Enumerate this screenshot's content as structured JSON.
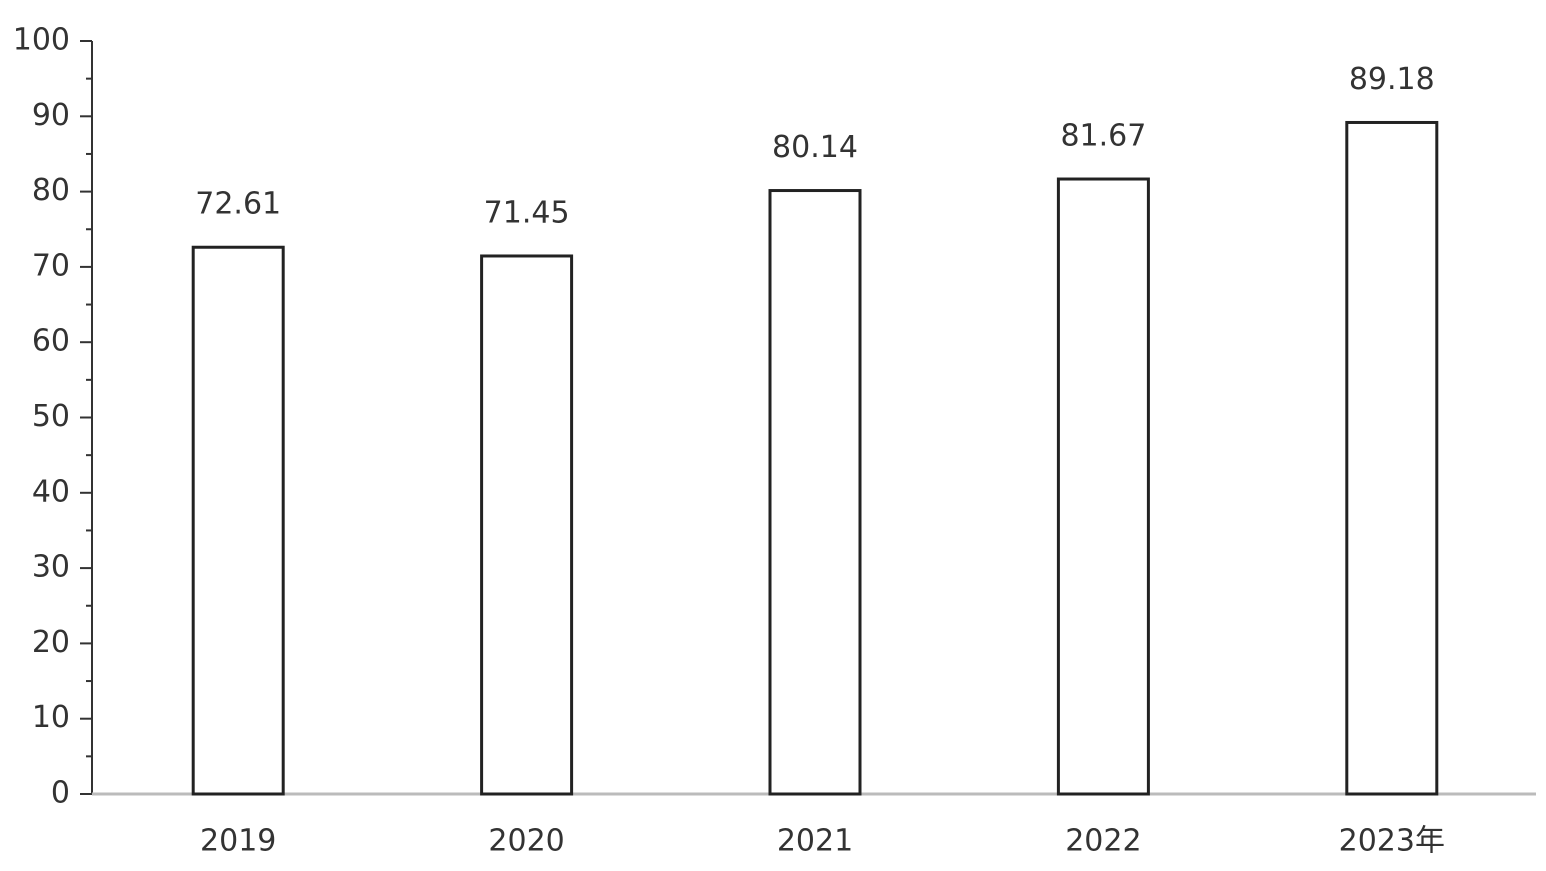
{
  "chart_data": {
    "type": "bar",
    "categories": [
      "2019",
      "2020",
      "2021",
      "2022",
      "2023年"
    ],
    "values": [
      72.61,
      71.45,
      80.14,
      81.67,
      89.18
    ],
    "color": "#ffffff",
    "ylim": [
      0,
      100
    ],
    "yticks": [
      0,
      10,
      20,
      30,
      40,
      50,
      60,
      70,
      80,
      90,
      100
    ],
    "yminorticks": [
      5,
      15,
      25,
      35,
      45,
      55,
      65,
      75,
      85,
      95
    ],
    "grid": false
  }
}
